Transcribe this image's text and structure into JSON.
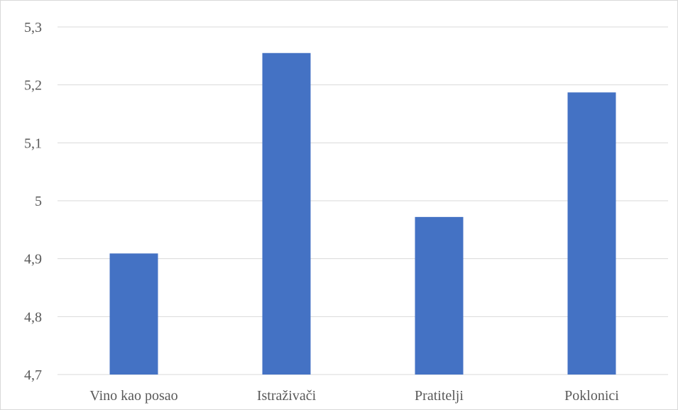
{
  "chart_data": {
    "type": "bar",
    "title": "",
    "xlabel": "",
    "ylabel": "",
    "categories": [
      "Vino kao posao",
      "Istraživači",
      "Pratitelji",
      "Poklonici"
    ],
    "values": [
      4.909,
      5.255,
      4.972,
      5.187
    ],
    "ylim": [
      4.7,
      5.3
    ],
    "yticks": [
      4.7,
      4.8,
      4.9,
      5.0,
      5.1,
      5.2,
      5.3
    ],
    "ytick_labels": [
      "4,7",
      "4,8",
      "4,9",
      "5",
      "5,1",
      "5,2",
      "5,3"
    ],
    "grid": true,
    "legend": "none",
    "bar_color": "#4472C4"
  }
}
